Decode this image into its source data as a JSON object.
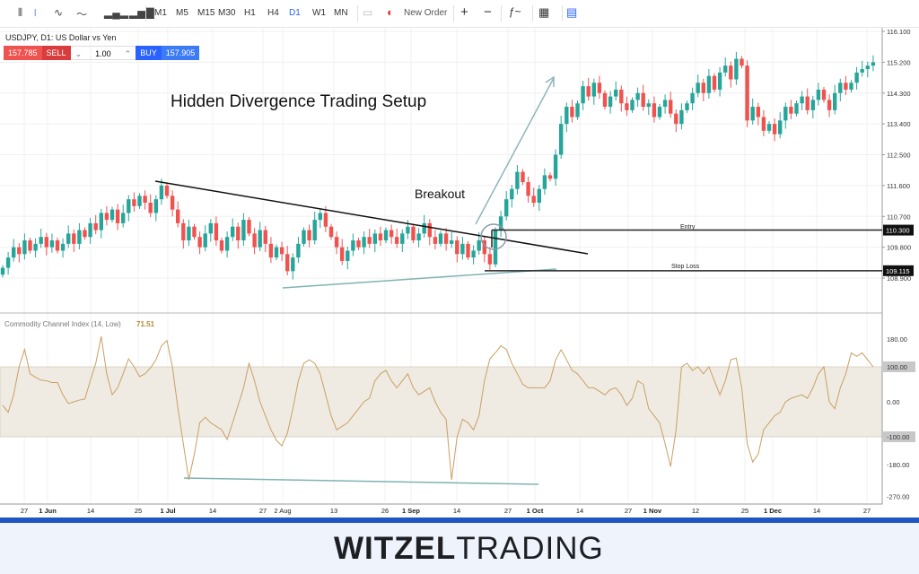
{
  "toolbar": {
    "items": [
      "M1",
      "M5",
      "M15",
      "M30",
      "H1",
      "H4",
      "D1",
      "W1",
      "MN"
    ],
    "active": "D1",
    "new_order": "New Order",
    "icons": [
      "bar-chart-icon",
      "candlestick-icon",
      "area-chart-icon",
      "line-chart-icon",
      "volume-icon",
      "indicator-bars-icon",
      "order-icon",
      "new-order-icon",
      "zoom-in-icon",
      "zoom-out-icon",
      "indicators-icon",
      "calendar-icon",
      "notes-icon"
    ]
  },
  "symbol": {
    "title": "USDJPY, D1: US Dollar vs Yen"
  },
  "trade": {
    "sell_price": "157.785",
    "sell_label": "SELL",
    "lot": "1.00",
    "buy_label": "BUY",
    "buy_price": "157.905"
  },
  "annotations": {
    "title": "Hidden Divergence Trading Setup",
    "breakout": "Breakout",
    "entry": "Entry",
    "stop_loss": "Stop Loss"
  },
  "indicator": {
    "name": "Commodity Channel Index (14, Low)",
    "value": "71.51"
  },
  "footer": {
    "logo_bold": "WITZEL",
    "logo_light": "TRADING"
  },
  "colors": {
    "up": "#26a69a",
    "down": "#ef5350",
    "cci": "#c9a062",
    "band": "#efebe3",
    "accent": "#2962ff",
    "footer_bar": "#2155c4"
  },
  "chart_data": [
    {
      "type": "candlestick",
      "symbol": "USDJPY",
      "timeframe": "D1",
      "price_ticks": [
        "116.100",
        "115.200",
        "114.300",
        "113.400",
        "112.500",
        "111.600",
        "110.700",
        "109.800",
        "108.900"
      ],
      "ylim": [
        108.6,
        116.2
      ],
      "price_labels": {
        "entry": "110.300",
        "stop_loss": "109.115"
      },
      "x_ticks": [
        "27",
        "1 Jun",
        "14",
        "25",
        "1 Jul",
        "14",
        "27",
        "2 Aug",
        "13",
        "26",
        "1 Sep",
        "14",
        "27",
        "1 Oct",
        "14",
        "27",
        "1 Nov",
        "12",
        "25",
        "1 Dec",
        "14",
        "27"
      ],
      "close": [
        109.2,
        109.5,
        109.8,
        109.6,
        110.0,
        109.7,
        109.9,
        110.1,
        109.8,
        110.0,
        109.7,
        109.9,
        110.2,
        109.9,
        110.3,
        110.1,
        110.5,
        110.3,
        110.8,
        110.6,
        110.9,
        110.5,
        110.8,
        111.2,
        111.0,
        111.3,
        111.1,
        110.8,
        111.2,
        111.6,
        111.3,
        110.9,
        110.5,
        110.0,
        110.4,
        110.1,
        109.8,
        110.2,
        110.5,
        110.0,
        109.7,
        110.1,
        110.4,
        110.0,
        110.6,
        110.2,
        109.8,
        110.3,
        109.9,
        109.5,
        109.8,
        109.6,
        109.1,
        109.5,
        109.9,
        110.3,
        110.0,
        110.6,
        110.8,
        110.4,
        110.1,
        109.8,
        109.4,
        109.7,
        110.0,
        109.8,
        110.1,
        109.9,
        110.2,
        110.0,
        110.3,
        110.1,
        109.9,
        110.2,
        110.4,
        110.0,
        110.2,
        110.5,
        110.1,
        109.9,
        110.2,
        109.9,
        110.0,
        109.6,
        109.9,
        109.5,
        109.7,
        110.0,
        109.6,
        109.3,
        110.3,
        110.7,
        111.2,
        111.5,
        112.0,
        111.7,
        111.3,
        111.1,
        111.5,
        111.9,
        111.8,
        112.5,
        113.4,
        113.9,
        113.6,
        114.0,
        114.5,
        114.2,
        114.6,
        114.3,
        113.9,
        114.2,
        114.4,
        114.0,
        113.8,
        114.1,
        114.3,
        113.9,
        114.0,
        113.6,
        113.9,
        114.1,
        113.7,
        113.4,
        113.8,
        114.0,
        114.3,
        114.6,
        114.3,
        114.8,
        114.4,
        114.9,
        115.1,
        114.7,
        115.3,
        115.1,
        113.5,
        113.9,
        113.6,
        113.2,
        113.4,
        113.1,
        113.5,
        113.9,
        113.7,
        114.0,
        114.2,
        113.8,
        114.1,
        114.4,
        114.1,
        113.8,
        114.3,
        114.6,
        114.4,
        114.6,
        114.9,
        115.0,
        115.1,
        115.2
      ]
    },
    {
      "type": "line",
      "name": "Commodity Channel Index (14, Low)",
      "y_ticks": [
        "180.00",
        "100.00",
        "0.00",
        "-100.00",
        "-180.00",
        "-270.00"
      ],
      "ylim": [
        -290,
        230
      ],
      "band": [
        -100,
        100
      ],
      "values": [
        -10,
        -30,
        20,
        100,
        150,
        80,
        70,
        62,
        60,
        55,
        55,
        20,
        -5,
        0,
        5,
        8,
        60,
        110,
        187,
        80,
        20,
        40,
        80,
        123,
        100,
        72,
        80,
        97,
        120,
        160,
        175,
        100,
        -18,
        -120,
        -223,
        -150,
        -60,
        -44,
        -60,
        -70,
        -80,
        -108,
        -60,
        -10,
        40,
        110,
        60,
        0,
        -40,
        -80,
        -110,
        -126,
        -90,
        -20,
        60,
        110,
        120,
        110,
        80,
        20,
        -40,
        -80,
        -70,
        -60,
        -40,
        -20,
        0,
        10,
        60,
        80,
        90,
        60,
        40,
        60,
        80,
        40,
        20,
        30,
        40,
        0,
        -30,
        -50,
        -223,
        -100,
        -50,
        -60,
        -80,
        -40,
        60,
        123,
        140,
        160,
        150,
        110,
        80,
        50,
        40,
        40,
        40,
        40,
        60,
        120,
        149,
        120,
        90,
        80,
        60,
        40,
        40,
        30,
        20,
        35,
        40,
        20,
        -10,
        10,
        60,
        50,
        -20,
        -40,
        -60,
        -120,
        -185,
        -80,
        100,
        110,
        90,
        100,
        80,
        100,
        60,
        20,
        60,
        120,
        125,
        40,
        -120,
        -172,
        -150,
        -80,
        -60,
        -40,
        -30,
        0,
        10,
        15,
        20,
        10,
        40,
        80,
        100,
        0,
        -20,
        40,
        80,
        140,
        130,
        140,
        120,
        100
      ]
    }
  ]
}
